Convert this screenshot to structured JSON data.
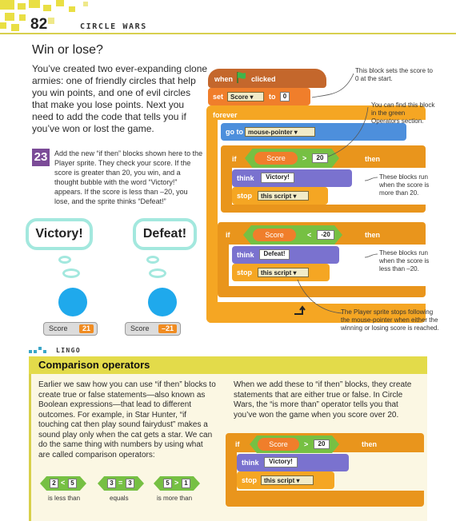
{
  "header": {
    "page_number": "82",
    "chapter": "CIRCLE WARS"
  },
  "section": {
    "title": "Win or lose?",
    "intro": "You’ve created two ever-expanding clone armies: one of friendly circles that help you win points, and one of evil circles that make you lose points. Next you need to add the code that tells you if you’ve won or lost the game."
  },
  "step": {
    "number": "23",
    "text": "Add the new “if then” blocks shown here to the Player sprite. They check your score. If the score is greater than 20, you win, and a thought bubble with the word “Victory!” appears. If the score is less than –20, you lose, and the sprite thinks “Defeat!”"
  },
  "bubbles": [
    {
      "text": "Victory!",
      "monitor_label": "Score",
      "monitor_value": "21"
    },
    {
      "text": "Defeat!",
      "monitor_label": "Score",
      "monitor_value": "–21"
    }
  ],
  "script": {
    "when": "when",
    "clicked": "clicked",
    "set": "set",
    "set_var": "Score",
    "to": "to",
    "set_value": "0",
    "forever": "forever",
    "goto": "go to",
    "goto_target": "mouse-pointer",
    "if1": {
      "if": "if",
      "var": "Score",
      "op": ">",
      "value": "20",
      "then": "then",
      "think": "think",
      "msg": "Victory!",
      "stop": "stop",
      "stop_opt": "this script"
    },
    "if2": {
      "if": "if",
      "var": "Score",
      "op": "<",
      "value": "-20",
      "then": "then",
      "think": "think",
      "msg": "Defeat!",
      "stop": "stop",
      "stop_opt": "this script"
    }
  },
  "notes": {
    "set_score": "This block sets the score to 0 at the start.",
    "operators": "You can find this block in the green Operators section.",
    "win": "These blocks run when the score is more than 20.",
    "lose": "These blocks run when the score is less than –20.",
    "stops": "The Player sprite stops following the mouse-pointer when either the winning or losing score is reached."
  },
  "lingo": {
    "tag": "LINGO",
    "title": "Comparison operators",
    "left": "Earlier we saw how you can use “if then” blocks to create true or false statements—also known as Boolean expressions—that lead to different outcomes. For example, in Star Hunter, “if touching cat then play sound fairydust” makes a sound play only when the cat gets a star. We can do the same thing with numbers by using what are called comparison operators:",
    "right": "When we add these to “if then” blocks, they create statements that are either true or false. In Circle Wars, the “is more than” operator tells you that you’ve won the game when you score over 20.",
    "operators": [
      {
        "a": "2",
        "op": "<",
        "b": "5",
        "caption": "is less than"
      },
      {
        "a": "3",
        "op": "=",
        "b": "3",
        "caption": "equals"
      },
      {
        "a": "5",
        "op": ">",
        "b": "1",
        "caption": "is more than"
      }
    ],
    "example": {
      "if": "if",
      "var": "Score",
      "op": ">",
      "value": "20",
      "then": "then",
      "think": "think",
      "msg": "Victory!",
      "stop": "stop",
      "stop_opt": "this script"
    }
  },
  "colors": {
    "accent": "#e3db4a",
    "control": "#f5a623",
    "operator": "#76c043",
    "variable": "#f07e2b",
    "motion": "#4d8fdc",
    "looks": "#7a72cf",
    "event": "#c4672c",
    "bubble_border": "#a3e8de",
    "circle": "#1fa9ec",
    "step_badge": "#7b4b97"
  }
}
